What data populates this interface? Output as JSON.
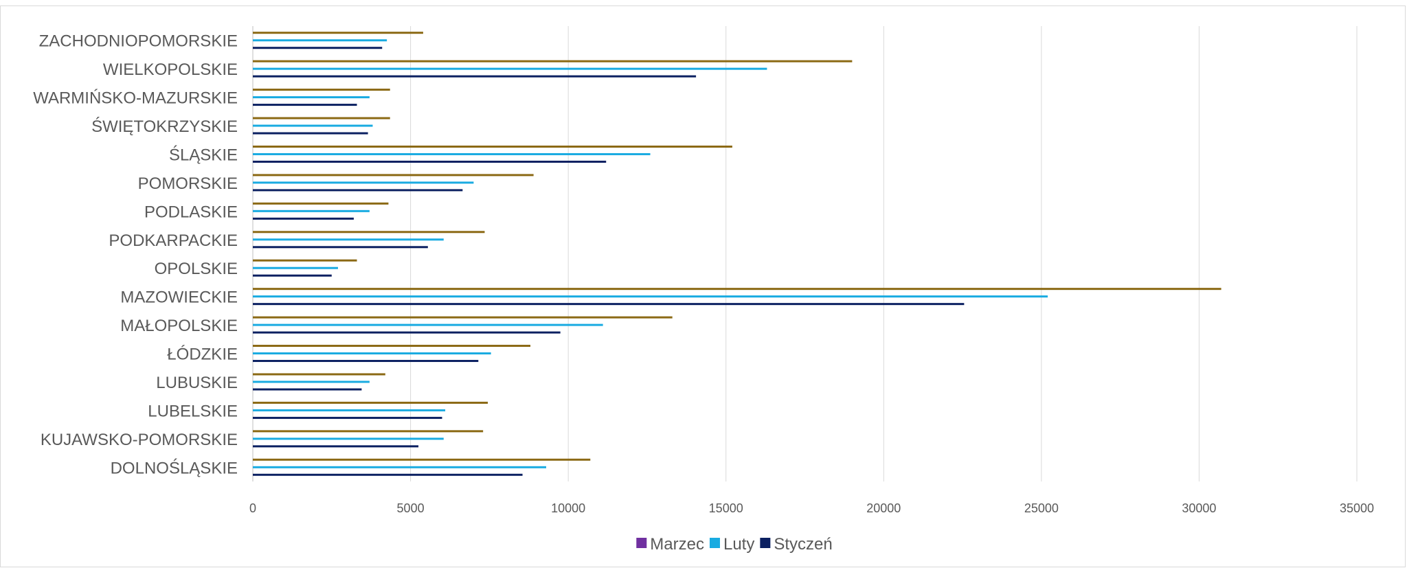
{
  "chart_data": {
    "type": "bar",
    "orientation": "horizontal",
    "title": "",
    "xlabel": "",
    "ylabel": "",
    "xlim": [
      0,
      35000
    ],
    "x_ticks": [
      0,
      5000,
      10000,
      15000,
      20000,
      25000,
      30000,
      35000
    ],
    "x_tick_labels": [
      "0",
      "5000",
      "10000",
      "15000",
      "20000",
      "25000",
      "30000",
      "35000"
    ],
    "grid": "vertical",
    "legend_position": "bottom",
    "categories": [
      "DOLNOŚLĄSKIE",
      "KUJAWSKO-POMORSKIE",
      "LUBELSKIE",
      "LUBUSKIE",
      "ŁÓDZKIE",
      "MAŁOPOLSKIE",
      "MAZOWIECKIE",
      "OPOLSKIE",
      "PODKARPACKIE",
      "PODLASKIE",
      "POMORSKIE",
      "ŚLĄSKIE",
      "ŚWIĘTOKRZYSKIE",
      "WARMIŃSKO-MAZURSKIE",
      "WIELKOPOLSKIE",
      "ZACHODNIOPOMORSKIE"
    ],
    "series": [
      {
        "name": "Marzec",
        "legend_color": "#7030A0",
        "bar_color": "#8B6914",
        "values": [
          10700,
          7300,
          7450,
          4200,
          8800,
          13300,
          30700,
          3300,
          7350,
          4300,
          8900,
          15200,
          4350,
          4350,
          19000,
          5400
        ]
      },
      {
        "name": "Luty",
        "legend_color": "#19ABE1",
        "bar_color": "#19ABE1",
        "values": [
          9300,
          6050,
          6100,
          3700,
          7550,
          11100,
          25200,
          2700,
          6050,
          3700,
          7000,
          12600,
          3800,
          3700,
          16300,
          4250
        ]
      },
      {
        "name": "Styczeń",
        "legend_color": "#0B2061",
        "bar_color": "#0B2061",
        "values": [
          8550,
          5250,
          6000,
          3450,
          7150,
          9750,
          22550,
          2500,
          5550,
          3200,
          6650,
          11200,
          3650,
          3300,
          14050,
          4100
        ]
      }
    ]
  }
}
